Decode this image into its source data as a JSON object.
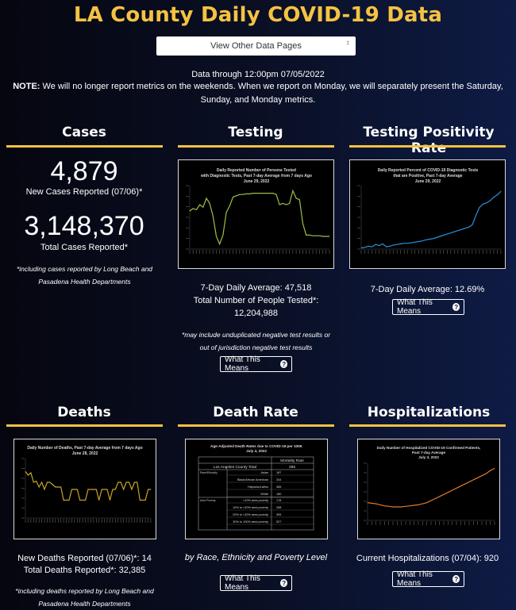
{
  "page_title": "LA County Daily COVID-19 Data",
  "nav_select": {
    "value": "View Other Data Pages",
    "arrow": "↕"
  },
  "date_line": "Data through 12:00pm 07/05/2022",
  "note": {
    "label": "NOTE:",
    "text": " We will no longer report metrics on the weekends. When we report on Monday, we will separately present the Saturday, Sunday, and Monday metrics."
  },
  "colors": {
    "accent": "#f5c242",
    "background": "#0a1026"
  },
  "cases": {
    "heading": "Cases",
    "new_cases": "4,879",
    "new_cases_label": "New Cases Reported (07/06)*",
    "total_cases": "3,148,370",
    "total_cases_label": "Total Cases Reported*",
    "footnote": "*including cases reported by Long Beach and Pasadena Health Departments"
  },
  "testing": {
    "heading": "Testing",
    "avg": "7-Day Daily Average: 47,518",
    "total_label": "Total Number of People Tested*:",
    "total_value": "12,204,988",
    "footnote": "*may include unduplicated negative test results or out of jurisdiction negative test results",
    "button": "What This Means",
    "chart_title_1": "Daily Reported Number of Persons Tested",
    "chart_title_2": "with Diagnostic Tests, Past 7-day Average from 7 days Ago",
    "chart_title_3": "June 29, 2022"
  },
  "positivity": {
    "heading": "Testing Positivity Rate",
    "avg": "7-Day Daily Average: 12.69%",
    "button": "What This Means",
    "chart_title_1": "Daily Reported Percent of COVID-19 Diagnostic Tests",
    "chart_title_2": "that are Positive, Past 7-day Average",
    "chart_title_3": "June 29, 2022"
  },
  "deaths": {
    "heading": "Deaths",
    "new_deaths": "New Deaths Reported (07/06)*: 14",
    "total_deaths": "Total Deaths Reported*: 32,385",
    "footnote": "*including deaths reported by Long Beach and Pasadena Health Departments",
    "chart_title_1": "Daily Number of Deaths, Past 7-day Average from 7 days Ago",
    "chart_title_2": "June 28, 2022"
  },
  "death_rate": {
    "heading": "Death Rate",
    "subtitle": "by Race, Ethnicity and Poverty Level",
    "button": "What This Means",
    "table_title_1": "Age-Adjusted Death Rates due to COVID-19 per 100K",
    "table_title_2": "July 4, 2022",
    "col_header": "Mortality Rate",
    "county_label": "Los Angeles County Total",
    "county_value": "295",
    "group_race": "Race/Ethnicity",
    "group_poverty": "Area Poverty",
    "rows": [
      {
        "label": "Asian",
        "value": "187"
      },
      {
        "label": "Black/African American",
        "value": "334"
      },
      {
        "label": "Hispanic/Latino",
        "value": "456"
      },
      {
        "label": "White",
        "value": "180"
      },
      {
        "label": "<10% area poverty",
        "value": "178"
      },
      {
        "label": "10% to <20% area poverty",
        "value": "268"
      },
      {
        "label": "20% to <30% area poverty",
        "value": "395"
      },
      {
        "label": "30% to 100% area poverty",
        "value": "527"
      }
    ]
  },
  "hospitalizations": {
    "heading": "Hospitalizations",
    "current": "Current Hospitalizations (07/04): 920",
    "button": "What This Means",
    "chart_title_1": "Daily Number of Hospitalized COVID-19 Confirmed Patients,",
    "chart_title_2": "Past 7-day Average",
    "chart_title_3": "July 3, 2022"
  },
  "chart_data": [
    {
      "type": "line",
      "title": "Daily Reported Number of Persons Tested with Diagnostic Tests, Past 7-day Average from 7 days Ago June 29, 2022",
      "series": [
        {
          "color": "#9cc04a",
          "values": [
            60,
            64,
            62,
            70,
            66,
            80,
            72,
            52,
            20,
            8,
            22,
            58,
            68,
            82,
            84,
            86,
            86,
            87,
            87,
            88,
            88,
            88,
            88,
            88,
            88,
            88,
            86,
            70,
            72,
            70,
            72,
            92,
            80,
            78,
            40,
            22,
            22,
            21,
            21,
            21,
            20,
            20,
            20
          ]
        }
      ],
      "ylim": [
        0,
        100
      ]
    },
    {
      "type": "line",
      "title": "Daily Reported Percent of COVID-19 Diagnostic Tests that are Positive, Past 7-day Average June 29, 2022",
      "series": [
        {
          "color": "#2a90dd",
          "values": [
            2,
            3,
            5,
            4,
            8,
            6,
            9,
            4,
            5,
            7,
            8,
            9,
            10,
            10,
            11,
            12,
            13,
            14,
            16,
            17,
            18,
            20,
            22,
            24,
            26,
            28,
            30,
            32,
            34,
            36,
            38,
            42,
            58,
            72,
            78,
            80,
            84,
            90,
            94,
            100
          ]
        }
      ],
      "ylim": [
        0,
        110
      ]
    },
    {
      "type": "line",
      "title": "Daily Number of Deaths, Past 7-day Average from 7 days Ago June 28, 2022",
      "series": [
        {
          "color": "#c9a227",
          "values": [
            78,
            72,
            76,
            60,
            62,
            52,
            60,
            48,
            60,
            60,
            56,
            52,
            52,
            52,
            30,
            30,
            30,
            48,
            48,
            48,
            30,
            30,
            30,
            48,
            48,
            48,
            48,
            30,
            48,
            48,
            48,
            30,
            48,
            48,
            60,
            60,
            48,
            60,
            60,
            48,
            60,
            60,
            30,
            30,
            30,
            48,
            48
          ]
        }
      ],
      "ylim": [
        0,
        100
      ]
    },
    {
      "type": "line",
      "title": "Daily Number of Hospitalized COVID-19 Confirmed Patients, Past 7-day Average July 3, 2022",
      "series": [
        {
          "color": "#e07b2a",
          "values": [
            34,
            33,
            32,
            30,
            28,
            27,
            26,
            26,
            26,
            27,
            28,
            29,
            30,
            32,
            34,
            38,
            42,
            46,
            50,
            54,
            58,
            62,
            66,
            70,
            74,
            78,
            82,
            86,
            90,
            96,
            100
          ]
        }
      ],
      "ylim": [
        0,
        110
      ]
    }
  ]
}
